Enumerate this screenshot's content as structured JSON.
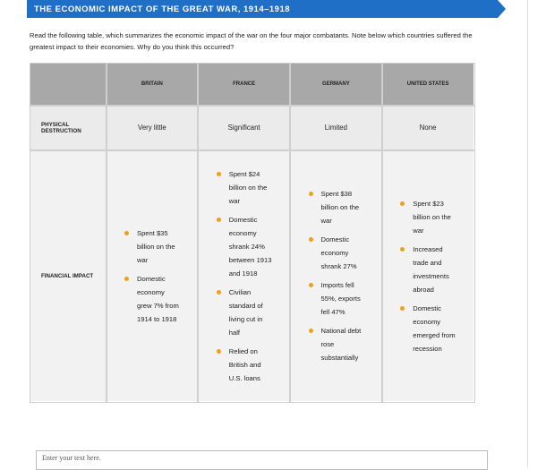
{
  "header": {
    "title": "THE ECONOMIC IMPACT OF THE GREAT WAR, 1914–1918"
  },
  "instructions": "Read the following table, which summarizes the economic impact of the war on the four major combatants. Note below which countries suffered the greatest impact to their economies. Why do you think this occurred?",
  "table": {
    "columns": [
      "BRITAIN",
      "FRANCE",
      "GERMANY",
      "UNITED STATES"
    ],
    "rows": [
      {
        "label": "PHYSICAL DESTRUCTION",
        "cells": [
          "Very little",
          "Significant",
          "Limited",
          "None"
        ]
      },
      {
        "label": "FINANCIAL IMPACT",
        "cells": [
          [
            "Spent $35 billion on the war",
            "Domestic economy grew 7% from 1914 to 1918"
          ],
          [
            "Spent $24 billion on the war",
            "Domestic economy shrank 24% between 1913 and 1918",
            "Civilian standard of living cut in half",
            "Relied on British and U.S. loans"
          ],
          [
            "Spent $38 billion on the war",
            "Domestic economy shrank 27%",
            "Imports fell 55%, exports fell 47%",
            "National debt rose substantially"
          ],
          [
            "Spent $23 billion on the war",
            "Increased trade and investments abroad",
            "Domestic economy emerged from recession"
          ]
        ]
      }
    ]
  },
  "input": {
    "placeholder": "Enter your text here."
  }
}
